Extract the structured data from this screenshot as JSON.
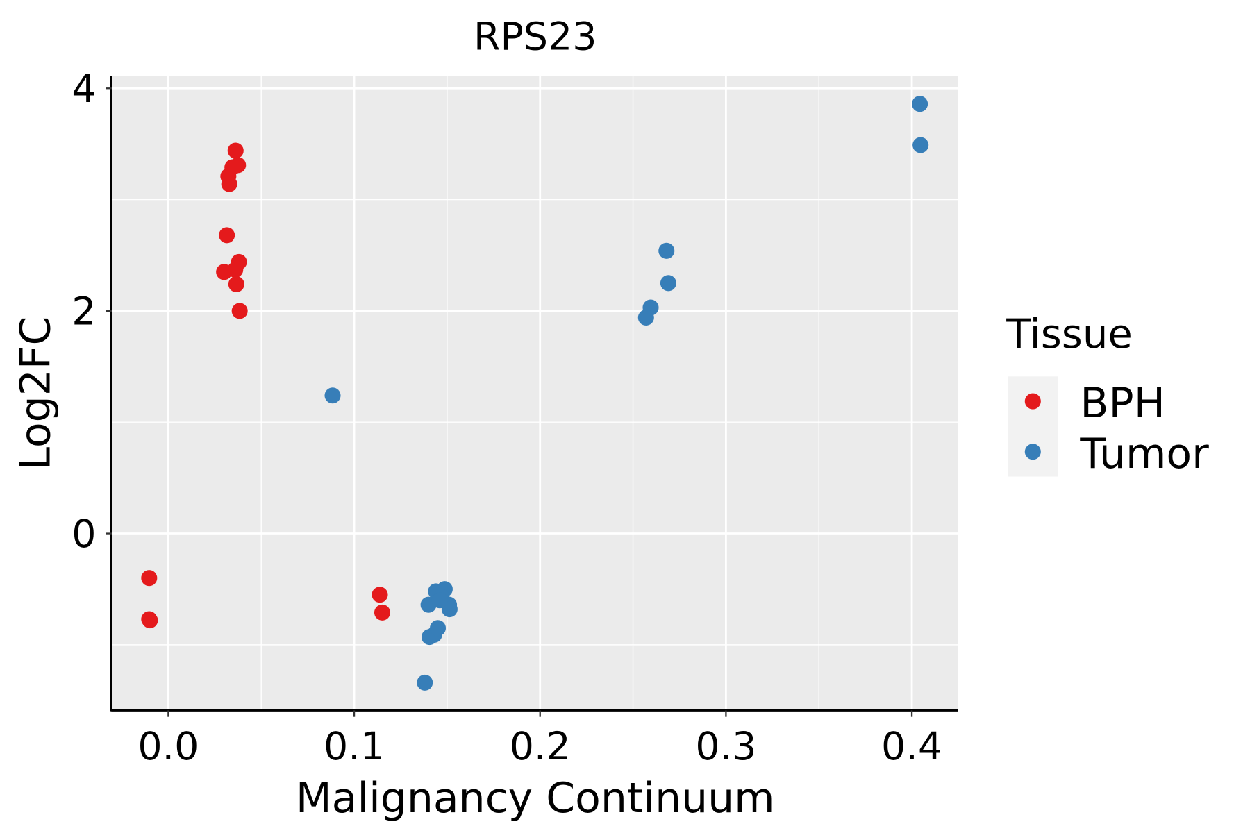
{
  "chart_data": {
    "type": "scatter",
    "title": "RPS23",
    "xlabel": "Malignancy Continuum",
    "ylabel": "Log2FC",
    "xlim": [
      -0.0302,
      0.425
    ],
    "ylim": [
      -1.59,
      4.11
    ],
    "xticks": [
      0.0,
      0.1,
      0.2,
      0.3,
      0.4
    ],
    "xtick_labels": [
      "0.0",
      "0.1",
      "0.2",
      "0.3",
      "0.4"
    ],
    "yticks": [
      0,
      2,
      4
    ],
    "ytick_labels": [
      "0",
      "2",
      "4"
    ],
    "grid": true,
    "legend": {
      "title": "Tissue",
      "placement": "right"
    },
    "series": [
      {
        "name": "BPH",
        "color": "#E41A1C",
        "points": [
          [
            0.0362,
            3.44
          ],
          [
            0.0345,
            3.29
          ],
          [
            0.0375,
            3.31
          ],
          [
            0.0323,
            3.21
          ],
          [
            0.0328,
            3.14
          ],
          [
            0.0315,
            2.68
          ],
          [
            0.03,
            2.35
          ],
          [
            0.038,
            2.44
          ],
          [
            0.036,
            2.37
          ],
          [
            0.0366,
            2.24
          ],
          [
            0.0384,
            2.0
          ],
          [
            -0.0103,
            -0.4
          ],
          [
            -0.0103,
            -0.77
          ],
          [
            -0.0099,
            -0.78
          ],
          [
            0.1138,
            -0.55
          ],
          [
            0.1151,
            -0.71
          ]
        ]
      },
      {
        "name": "Tumor",
        "color": "#377EB8",
        "points": [
          [
            0.0884,
            1.24
          ],
          [
            0.4043,
            3.86
          ],
          [
            0.4047,
            3.49
          ],
          [
            0.268,
            2.54
          ],
          [
            0.269,
            2.25
          ],
          [
            0.2595,
            2.03
          ],
          [
            0.257,
            1.94
          ],
          [
            0.138,
            -1.34
          ],
          [
            0.1405,
            -0.93
          ],
          [
            0.143,
            -0.91
          ],
          [
            0.145,
            -0.85
          ],
          [
            0.14,
            -0.64
          ],
          [
            0.144,
            -0.52
          ],
          [
            0.1487,
            -0.5
          ],
          [
            0.147,
            -0.57
          ],
          [
            0.151,
            -0.64
          ],
          [
            0.1513,
            -0.68
          ],
          [
            0.146,
            -0.6
          ]
        ]
      }
    ]
  }
}
